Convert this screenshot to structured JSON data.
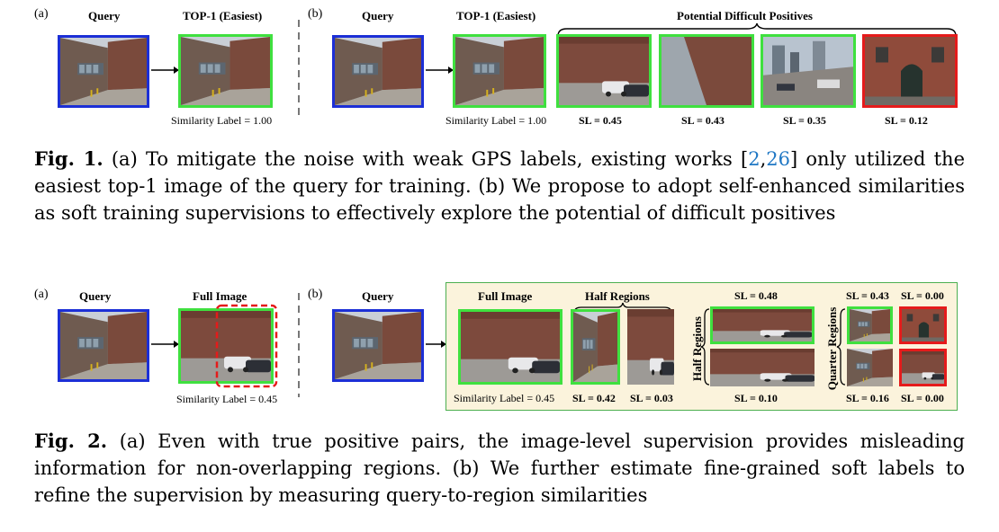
{
  "fig1": {
    "panel_a_label": "(a)",
    "panel_b_label": "(b)",
    "query_header": "Query",
    "top1_header": "TOP-1 (Easiest)",
    "potential_header": "Potential Difficult Positives",
    "similarity_label_prefix": "S",
    "similarity_label_text": "imilarity ",
    "similarity_label_L": "L",
    "similarity_label_rest": "abel",
    "similarity_value_a": "= 1.00",
    "similarity_full_b": "Similarity Label = 1.00",
    "sl_values": [
      "SL = 0.45",
      "SL = 0.43",
      "SL = 0.35",
      "SL = 0.12"
    ],
    "caption_title": "Fig. 1.",
    "caption_1": "(a) To mitigate the noise with weak GPS labels, existing works [",
    "cite_a": "2",
    "cite_sep": ",",
    "cite_b": "26",
    "caption_2": "] only utilized the easiest top-1 image of the query for training. (b) We propose to adopt self-enhanced similarities as soft training supervisions to effectively explore the potential of difficult positives"
  },
  "fig2": {
    "panel_a_label": "(a)",
    "panel_b_label": "(b)",
    "query_header": "Query",
    "full_image_header": "Full Image",
    "similarity_a": "Similarity Label = 0.45",
    "query_header_b": "Query",
    "full_image_header_b": "Full Image",
    "half_regions_header": "Half Regions",
    "similarity_b": "Similarity Label = 0.45",
    "sl_042": "SL = 0.42",
    "sl_003": "SL = 0.03",
    "half_regions_vertical": "Half Regions",
    "sl_048": "SL = 0.48",
    "sl_010": "SL = 0.10",
    "quarter_regions_vertical": "Quarter Regions",
    "sl_043": "SL = 0.43",
    "sl_000_top": "SL = 0.00",
    "sl_016": "SL = 0.16",
    "sl_000_bottom": "SL = 0.00",
    "caption_title": "Fig. 2.",
    "caption_text": "(a) Even with true positive pairs, the image-level supervision provides misleading information for non-overlapping regions. (b) We further estimate fine-grained soft labels to refine the supervision by measuring query-to-region similarities"
  },
  "colors": {
    "query_border": "#1c2fd6",
    "positive_border": "#3fe03f",
    "negative_border": "#e51b1b",
    "panel_bg": "#fbf3dc",
    "panel_border": "#4caf50",
    "citation": "#1f77c4"
  }
}
